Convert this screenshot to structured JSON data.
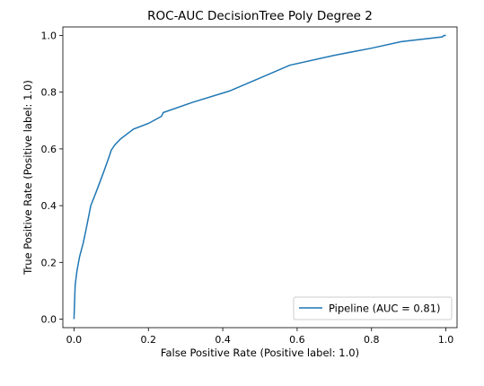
{
  "chart_data": {
    "type": "line",
    "title": "ROC-AUC DecisionTree Poly Degree 2",
    "xlabel": "False Positive Rate (Positive label: 1.0)",
    "ylabel": "True Positive Rate (Positive label: 1.0)",
    "xlim": [
      -0.03,
      1.03
    ],
    "ylim": [
      -0.03,
      1.03
    ],
    "xticks": [
      "0.0",
      "0.2",
      "0.4",
      "0.6",
      "0.8",
      "1.0"
    ],
    "yticks": [
      "0.0",
      "0.2",
      "0.4",
      "0.6",
      "0.8",
      "1.0"
    ],
    "grid": false,
    "legend_position": "lower-right",
    "series": [
      {
        "name": "Pipeline (AUC = 0.81)",
        "color": "#1f77b4",
        "x": [
          0.0,
          0.003,
          0.008,
          0.015,
          0.025,
          0.033,
          0.045,
          0.06,
          0.08,
          0.095,
          0.1,
          0.11,
          0.125,
          0.16,
          0.2,
          0.235,
          0.24,
          0.32,
          0.42,
          0.5,
          0.58,
          0.7,
          0.8,
          0.88,
          0.99,
          0.995,
          1.0
        ],
        "y": [
          0.0,
          0.12,
          0.17,
          0.22,
          0.27,
          0.32,
          0.4,
          0.45,
          0.52,
          0.575,
          0.595,
          0.615,
          0.635,
          0.67,
          0.69,
          0.715,
          0.728,
          0.765,
          0.805,
          0.85,
          0.895,
          0.93,
          0.955,
          0.978,
          0.995,
          1.0,
          1.0
        ]
      }
    ]
  }
}
